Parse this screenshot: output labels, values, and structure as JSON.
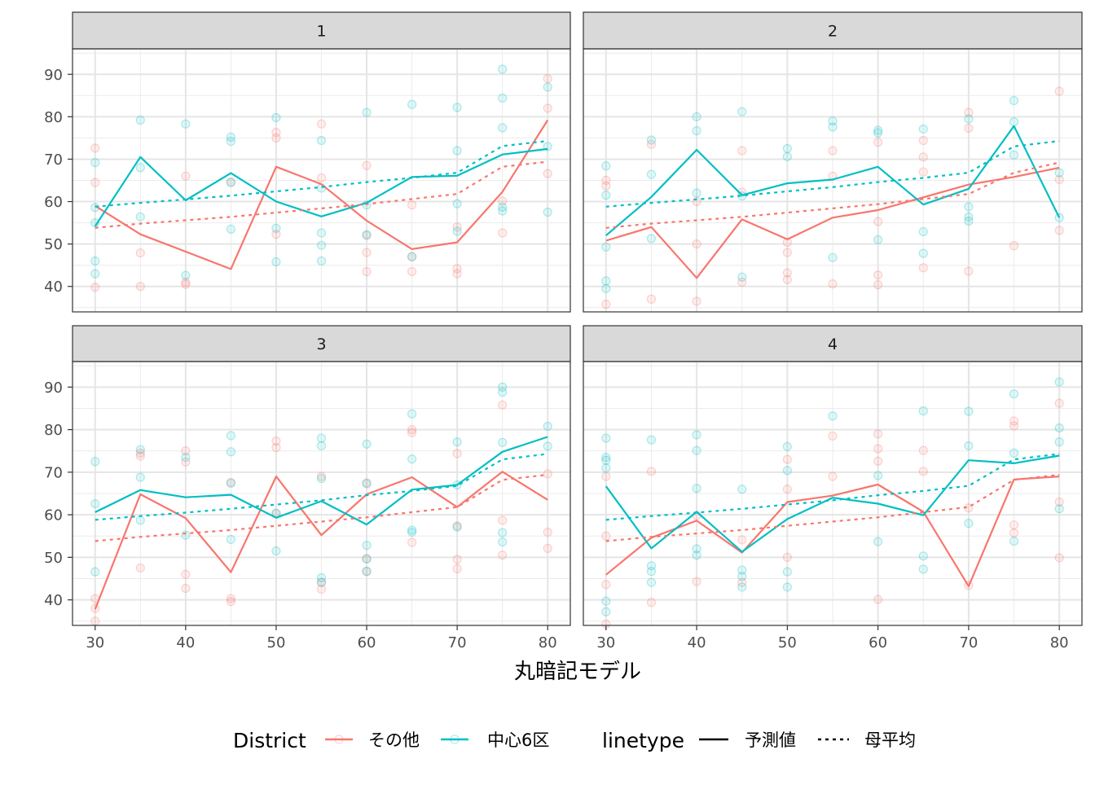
{
  "chart_data": {
    "type": "line",
    "xlabel": "丸暗記モデル",
    "ylabel": "",
    "x": [
      30,
      35,
      40,
      45,
      50,
      55,
      60,
      65,
      70,
      75,
      80
    ],
    "x_ticks": [
      30,
      40,
      50,
      60,
      70,
      80
    ],
    "y_ticks": [
      40,
      50,
      60,
      70,
      80,
      90
    ],
    "ylim": [
      34,
      96
    ],
    "grid": true,
    "legend": {
      "placement": "bottom",
      "district_title": "District",
      "district_items": [
        {
          "name": "その他",
          "color": "#F8766D"
        },
        {
          "name": "中心6区",
          "color": "#00BFC4"
        }
      ],
      "linetype_title": "linetype",
      "linetype_items": [
        {
          "name": "予測値",
          "style": "solid"
        },
        {
          "name": "母平均",
          "style": "dashed"
        }
      ]
    },
    "panels": [
      {
        "title": "1",
        "series": [
          {
            "name": "その他",
            "linetype": "予測値",
            "values": [
              59,
              52.3,
              48.2,
              44.1,
              68.2,
              64.1,
              55.5,
              48.8,
              50.4,
              62.3,
              79.2
            ]
          },
          {
            "name": "中心6区",
            "linetype": "予測値",
            "values": [
              54.2,
              70.5,
              60.3,
              66.7,
              60,
              56.5,
              59.7,
              65.8,
              66.1,
              71.1,
              72.4
            ]
          },
          {
            "name": "その他",
            "linetype": "母平均",
            "values": [
              53.8,
              54.8,
              55.6,
              56.4,
              57.4,
              58.4,
              59.4,
              60.6,
              61.8,
              68.2,
              69.4
            ]
          },
          {
            "name": "中心6区",
            "linetype": "母平均",
            "values": [
              58.8,
              59.7,
              60.5,
              61.4,
              62.4,
              63.4,
              64.6,
              65.6,
              66.8,
              73.1,
              74.3
            ]
          }
        ],
        "points": [
          {
            "district": "その他",
            "x": [
              30,
              30,
              30,
              35,
              35,
              40,
              40,
              40,
              45,
              50,
              50,
              50,
              55,
              55,
              60,
              60,
              60,
              60,
              65,
              65,
              65,
              70,
              70,
              70,
              75,
              75,
              80,
              80,
              80
            ],
            "y": [
              72.6,
              64.5,
              39.8,
              47.9,
              40,
              66,
              41,
              40.5,
              64.6,
              76.3,
              75,
              52.3,
              78.3,
              65.6,
              68.5,
              52,
              48,
              43.5,
              59.2,
              47,
              43.5,
              54,
              44.2,
              43,
              60.1,
              52.6,
              89,
              82,
              66.6
            ]
          },
          {
            "district": "中心6区",
            "x": [
              30,
              30,
              30,
              30,
              30,
              35,
              35,
              35,
              40,
              40,
              45,
              45,
              45,
              45,
              50,
              50,
              50,
              55,
              55,
              55,
              55,
              55,
              60,
              60,
              60,
              65,
              65,
              70,
              70,
              70,
              70,
              75,
              75,
              75,
              75,
              75,
              80,
              80,
              80
            ],
            "y": [
              69.2,
              58.6,
              55,
              46,
              43,
              79.2,
              68,
              56.4,
              78.3,
              42.6,
              75.2,
              74.2,
              64.5,
              53.5,
              79.8,
              53.7,
              45.8,
              74.4,
              63.2,
              52.6,
              49.7,
              46,
              81,
              59.2,
              52.2,
              82.9,
              47,
              82.2,
              72,
              59.5,
              53,
              91.2,
              84.4,
              77.4,
              58.7,
              57.8,
              87,
              73,
              57.5
            ]
          }
        ]
      },
      {
        "title": "2",
        "series": [
          {
            "name": "その他",
            "linetype": "予測値",
            "values": [
              50.8,
              54,
              42,
              55.8,
              51.1,
              56.2,
              58,
              61,
              64,
              65.8,
              68
            ]
          },
          {
            "name": "中心6区",
            "linetype": "予測値",
            "values": [
              52,
              61.1,
              72.2,
              61.5,
              64.3,
              65.2,
              68.2,
              59.3,
              63,
              77.8,
              56.2
            ]
          },
          {
            "name": "その他",
            "linetype": "母平均",
            "values": [
              53.8,
              54.8,
              55.6,
              56.4,
              57.4,
              58.4,
              59.4,
              60.6,
              61.8,
              66.8,
              69.2
            ]
          },
          {
            "name": "中心6区",
            "linetype": "母平均",
            "values": [
              58.8,
              59.7,
              60.5,
              61.4,
              62.4,
              63.4,
              64.6,
              65.6,
              66.8,
              73,
              74.3
            ]
          }
        ],
        "points": [
          {
            "district": "その他",
            "x": [
              30,
              30,
              30,
              35,
              35,
              40,
              40,
              40,
              45,
              45,
              45,
              50,
              50,
              50,
              50,
              55,
              55,
              55,
              60,
              60,
              60,
              60,
              65,
              65,
              65,
              65,
              70,
              70,
              70,
              75,
              80,
              80,
              80
            ],
            "y": [
              65,
              63.7,
              35.8,
              73.5,
              37,
              60,
              50,
              36.5,
              72,
              62.2,
              41,
              50.4,
              48,
              43.2,
              41.6,
              72,
              66,
              40.6,
              74,
              55.3,
              42.7,
              40.4,
              74.4,
              70.5,
              44.4,
              67,
              81,
              77.3,
              43.6,
              49.6,
              86,
              65.2,
              53.2
            ]
          },
          {
            "district": "中心6区",
            "x": [
              30,
              30,
              30,
              30,
              30,
              35,
              35,
              35,
              40,
              40,
              40,
              45,
              45,
              45,
              50,
              50,
              55,
              55,
              55,
              60,
              60,
              60,
              65,
              65,
              65,
              70,
              70,
              70,
              70,
              75,
              75,
              75,
              80,
              80
            ],
            "y": [
              68.4,
              61.5,
              49.3,
              41.3,
              39.5,
              74.5,
              66.4,
              51.3,
              80,
              76.7,
              62,
              81.2,
              61.3,
              42.2,
              72.5,
              70.6,
              79,
              77.6,
              46.8,
              76.8,
              76.2,
              51,
              77.1,
              52.9,
              47.8,
              79.5,
              58.8,
              56.4,
              55.4,
              83.8,
              78.8,
              71,
              66.8,
              56.2
            ]
          }
        ]
      },
      {
        "title": "3",
        "series": [
          {
            "name": "その他",
            "linetype": "予測値",
            "values": [
              37.8,
              64.8,
              59.2,
              46.5,
              69,
              55.2,
              64.8,
              68.8,
              61.8,
              70.1,
              63.5
            ]
          },
          {
            "name": "中心6区",
            "linetype": "予測値",
            "values": [
              60.6,
              65.8,
              64.1,
              64.7,
              59.3,
              63.2,
              57.7,
              65.9,
              67,
              74.8,
              78.3
            ]
          },
          {
            "name": "その他",
            "linetype": "母平均",
            "values": [
              53.8,
              54.8,
              55.6,
              56.4,
              57.4,
              58.4,
              59.4,
              60.6,
              61.8,
              68.2,
              69.4
            ]
          },
          {
            "name": "中心6区",
            "linetype": "母平均",
            "values": [
              58.8,
              59.7,
              60.5,
              61.4,
              62.4,
              63.4,
              64.6,
              65.6,
              66.8,
              73,
              74.3
            ]
          }
        ],
        "points": [
          {
            "district": "その他",
            "x": [
              30,
              30,
              30,
              35,
              35,
              35,
              40,
              40,
              40,
              40,
              45,
              45,
              45,
              50,
              50,
              50,
              55,
              55,
              55,
              60,
              60,
              60,
              65,
              65,
              65,
              70,
              70,
              70,
              70,
              75,
              75,
              75,
              80,
              80,
              80
            ],
            "y": [
              40.3,
              38,
              35,
              73.8,
              74.5,
              47.5,
              75,
              72.4,
              46,
              42.7,
              67.6,
              40.3,
              39.6,
              77.3,
              75.8,
              60.2,
              69,
              44.1,
              42.5,
              67.5,
              49.7,
              46.7,
              80,
              79.3,
              53.5,
              74.4,
              57.4,
              49.5,
              47.3,
              85.8,
              58.7,
              50.5,
              69.6,
              55.9,
              52.1
            ]
          },
          {
            "district": "中心6区",
            "x": [
              30,
              30,
              30,
              35,
              35,
              35,
              40,
              40,
              45,
              45,
              45,
              45,
              50,
              50,
              55,
              55,
              55,
              55,
              55,
              60,
              60,
              60,
              60,
              60,
              65,
              65,
              65,
              65,
              70,
              70,
              70,
              75,
              75,
              75,
              75,
              75,
              80,
              80
            ],
            "y": [
              72.5,
              62.6,
              46.6,
              75.3,
              68.8,
              58.7,
              73.5,
              55.2,
              78.6,
              74.8,
              67.4,
              54.2,
              60.4,
              51.5,
              78,
              76.2,
              68.5,
              45.2,
              44.1,
              76.6,
              67.3,
              52.8,
              49.6,
              46.7,
              83.7,
              73.1,
              56.4,
              55.9,
              77.1,
              67,
              57.1,
              90,
              88.8,
              77,
              55.8,
              53.6,
              80.8,
              76.1
            ]
          }
        ]
      },
      {
        "title": "4",
        "series": [
          {
            "name": "その他",
            "linetype": "予測値",
            "values": [
              45.9,
              54.6,
              58.6,
              51.1,
              63,
              64.5,
              67.1,
              60.7,
              43.2,
              68.3,
              69
            ]
          },
          {
            "name": "中心6区",
            "linetype": "予測値",
            "values": [
              66.7,
              52.1,
              60.7,
              51.3,
              59,
              64,
              62.6,
              59.9,
              72.8,
              72.1,
              73.9
            ]
          },
          {
            "name": "その他",
            "linetype": "母平均",
            "values": [
              53.8,
              54.8,
              55.6,
              56.4,
              57.4,
              58.4,
              59.4,
              60.6,
              61.8,
              68.2,
              69.4
            ]
          },
          {
            "name": "中心6区",
            "linetype": "母平均",
            "values": [
              58.8,
              59.7,
              60.5,
              61.4,
              62.4,
              63.4,
              64.6,
              65.6,
              66.8,
              73,
              74.3
            ]
          }
        ],
        "points": [
          {
            "district": "その他",
            "x": [
              30,
              30,
              30,
              30,
              35,
              35,
              40,
              40,
              45,
              45,
              50,
              50,
              50,
              55,
              55,
              60,
              60,
              60,
              60,
              65,
              65,
              70,
              70,
              75,
              75,
              75,
              75,
              80,
              80,
              80
            ],
            "y": [
              69,
              55,
              43.6,
              34.3,
              70.2,
              39.4,
              59.8,
              44.3,
              54.1,
              44.1,
              73,
              66,
              50,
              78.5,
              69,
              79,
              75.5,
              72.6,
              40.1,
              75.1,
              70.2,
              61.6,
              43.4,
              82,
              80.9,
              57.6,
              55.7,
              86.2,
              63,
              49.9
            ]
          },
          {
            "district": "中心6区",
            "x": [
              30,
              30,
              30,
              30,
              30,
              30,
              35,
              35,
              35,
              35,
              40,
              40,
              40,
              40,
              40,
              45,
              45,
              45,
              45,
              50,
              50,
              50,
              50,
              55,
              60,
              60,
              65,
              65,
              65,
              70,
              70,
              70,
              75,
              75,
              75,
              80,
              80,
              80,
              80
            ],
            "y": [
              78,
              73.5,
              72.8,
              71,
              39.7,
              37.2,
              77.6,
              48,
              46.7,
              44.1,
              78.8,
              75.1,
              66.2,
              52,
              50.5,
              66,
              47,
              45.5,
              43,
              76,
              70.4,
              46.6,
              43,
              83.2,
              69.2,
              53.7,
              84.4,
              50.3,
              47.2,
              84.3,
              76.2,
              58,
              88.4,
              74.5,
              53.8,
              91.2,
              80.4,
              77.1,
              61.4
            ]
          }
        ]
      }
    ]
  }
}
